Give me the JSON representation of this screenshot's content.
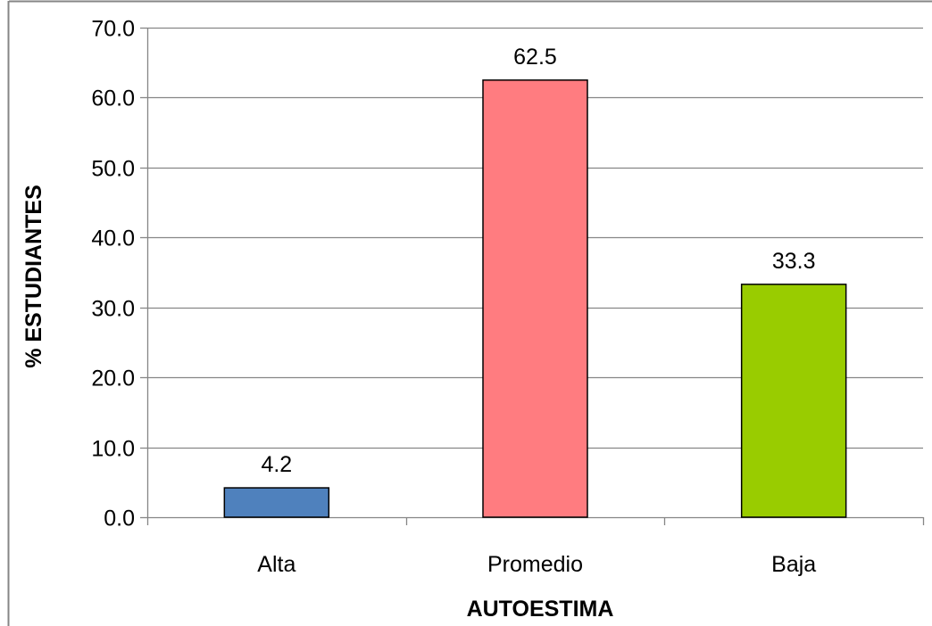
{
  "chart_data": {
    "type": "bar",
    "title": "",
    "xlabel": "AUTOESTIMA",
    "ylabel": "% ESTUDIANTES",
    "categories": [
      "Alta",
      "Promedio",
      "Baja"
    ],
    "values": [
      4.2,
      62.5,
      33.3
    ],
    "data_labels": [
      "4.2",
      "62.5",
      "33.3"
    ],
    "bar_colors": [
      "#4f81bd",
      "#ff7c80",
      "#99cc00"
    ],
    "ylim": [
      0,
      70
    ],
    "y_ticks": [
      "0.0",
      "10.0",
      "20.0",
      "30.0",
      "40.0",
      "50.0",
      "60.0",
      "70.0"
    ],
    "grid": true,
    "legend": "none"
  }
}
